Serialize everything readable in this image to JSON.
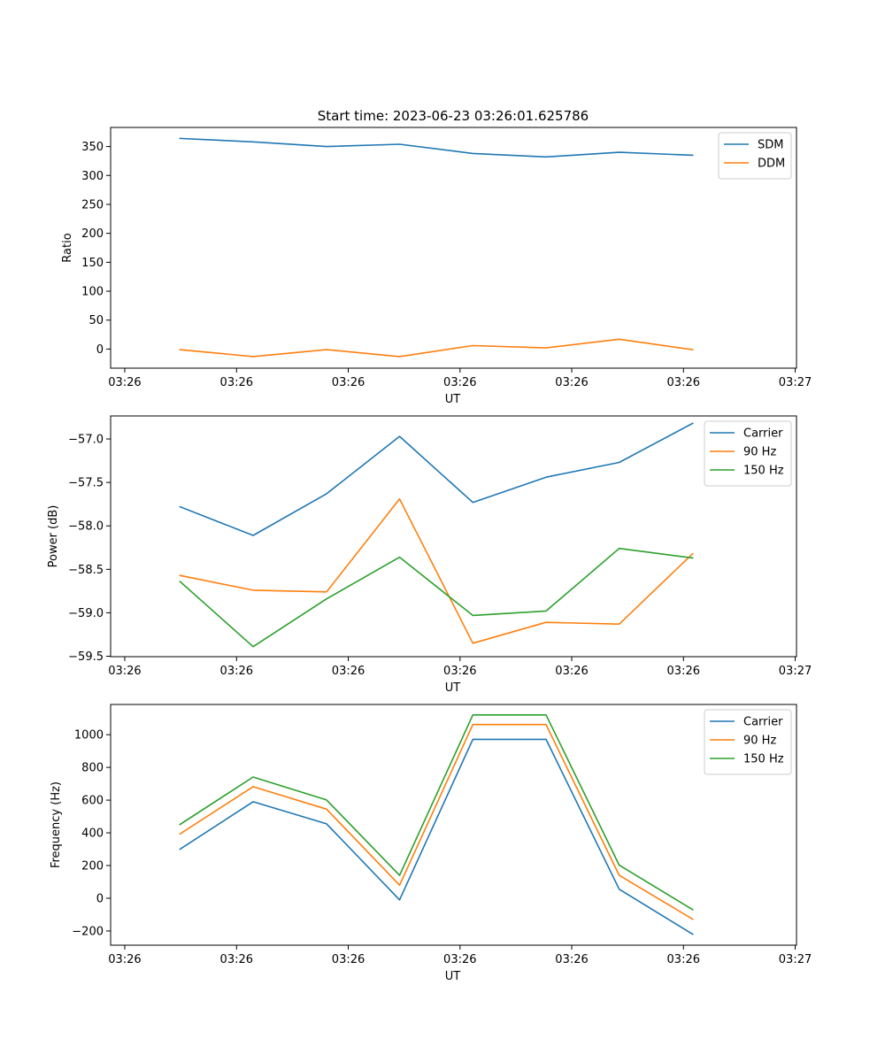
{
  "title": "Start time: 2023-06-23 03:26:01.625786",
  "colors": {
    "blue": "#1f77b4",
    "orange": "#ff7f0e",
    "green": "#2ca02c"
  },
  "chart_data": [
    {
      "type": "line",
      "xlabel": "UT",
      "ylabel": "Ratio",
      "xticks": [
        "03:26",
        "03:26",
        "03:26",
        "03:26",
        "03:26",
        "03:26",
        "03:27"
      ],
      "yticks": [
        0,
        50,
        100,
        150,
        200,
        250,
        300,
        350
      ],
      "ylim": [
        -33,
        383
      ],
      "legend_position": "upper right",
      "series": [
        {
          "name": "SDM",
          "color": "#1f77b4",
          "values": [
            364,
            358,
            350,
            354,
            338,
            332,
            340,
            335
          ]
        },
        {
          "name": "DDM",
          "color": "#ff7f0e",
          "values": [
            -1,
            -13,
            -1,
            -13,
            6,
            2,
            17,
            -1
          ]
        }
      ]
    },
    {
      "type": "line",
      "xlabel": "UT",
      "ylabel": "Power (dB)",
      "xticks": [
        "03:26",
        "03:26",
        "03:26",
        "03:26",
        "03:26",
        "03:26",
        "03:27"
      ],
      "yticks": [
        "−57.0",
        "−57.5",
        "−58.0",
        "−58.5",
        "−59.0",
        "−59.5"
      ],
      "ylim": [
        -59.505,
        -56.735
      ],
      "legend_position": "upper right",
      "series": [
        {
          "name": "Carrier",
          "color": "#1f77b4",
          "values": [
            -57.78,
            -58.11,
            -57.63,
            -56.97,
            -57.73,
            -57.44,
            -57.27,
            -56.82
          ]
        },
        {
          "name": "90 Hz",
          "color": "#ff7f0e",
          "values": [
            -58.57,
            -58.74,
            -58.76,
            -57.69,
            -59.35,
            -59.11,
            -59.13,
            -58.32
          ]
        },
        {
          "name": "150 Hz",
          "color": "#2ca02c",
          "values": [
            -58.64,
            -59.39,
            -58.84,
            -58.36,
            -59.03,
            -58.98,
            -58.26,
            -58.37
          ]
        }
      ]
    },
    {
      "type": "line",
      "xlabel": "UT",
      "ylabel": "Frequency (Hz)",
      "xticks": [
        "03:26",
        "03:26",
        "03:26",
        "03:26",
        "03:26",
        "03:26",
        "03:27"
      ],
      "yticks": [
        "1000",
        "800",
        "600",
        "400",
        "200",
        "0",
        "−200"
      ],
      "ylim": [
        -287,
        1185
      ],
      "legend_position": "upper right",
      "series": [
        {
          "name": "Carrier",
          "color": "#1f77b4",
          "values": [
            300,
            590,
            455,
            -10,
            972,
            972,
            55,
            -220
          ]
        },
        {
          "name": "90 Hz",
          "color": "#ff7f0e",
          "values": [
            393,
            682,
            545,
            80,
            1062,
            1062,
            140,
            -128
          ]
        },
        {
          "name": "150 Hz",
          "color": "#2ca02c",
          "values": [
            451,
            741,
            601,
            140,
            1121,
            1121,
            202,
            -70
          ]
        }
      ]
    }
  ]
}
